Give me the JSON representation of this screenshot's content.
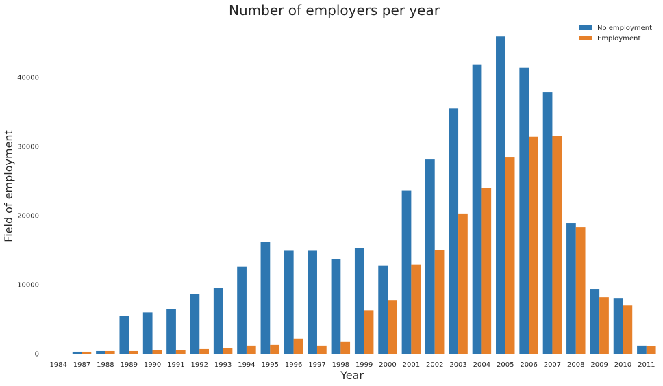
{
  "chart_data": {
    "type": "bar",
    "title": "Number of employers per year",
    "xlabel": "Year",
    "ylabel": "Field of employment",
    "categories": [
      "1984",
      "1987",
      "1988",
      "1989",
      "1990",
      "1991",
      "1992",
      "1993",
      "1994",
      "1995",
      "1996",
      "1997",
      "1998",
      "1999",
      "2000",
      "2001",
      "2002",
      "2003",
      "2004",
      "2005",
      "2006",
      "2007",
      "2008",
      "2009",
      "2010",
      "2011"
    ],
    "series": [
      {
        "name": "No employment",
        "color": "#2e77b1",
        "values": [
          0,
          300,
          400,
          5500,
          6000,
          6500,
          8700,
          9500,
          12600,
          16200,
          14900,
          14900,
          13700,
          15300,
          12800,
          23600,
          28100,
          35500,
          41800,
          45900,
          41400,
          37800,
          18900,
          9300,
          8000,
          1200
        ]
      },
      {
        "name": "Employment",
        "color": "#e6802a",
        "values": [
          0,
          300,
          400,
          400,
          500,
          500,
          700,
          800,
          1200,
          1300,
          2200,
          1200,
          1800,
          6300,
          7700,
          12900,
          15000,
          20300,
          24000,
          28400,
          31400,
          31500,
          18300,
          8200,
          7000,
          1100
        ]
      }
    ],
    "yticks": [
      0,
      10000,
      20000,
      30000,
      40000
    ],
    "ylim": [
      0,
      48200
    ],
    "grid": false,
    "legend": "top-right"
  }
}
